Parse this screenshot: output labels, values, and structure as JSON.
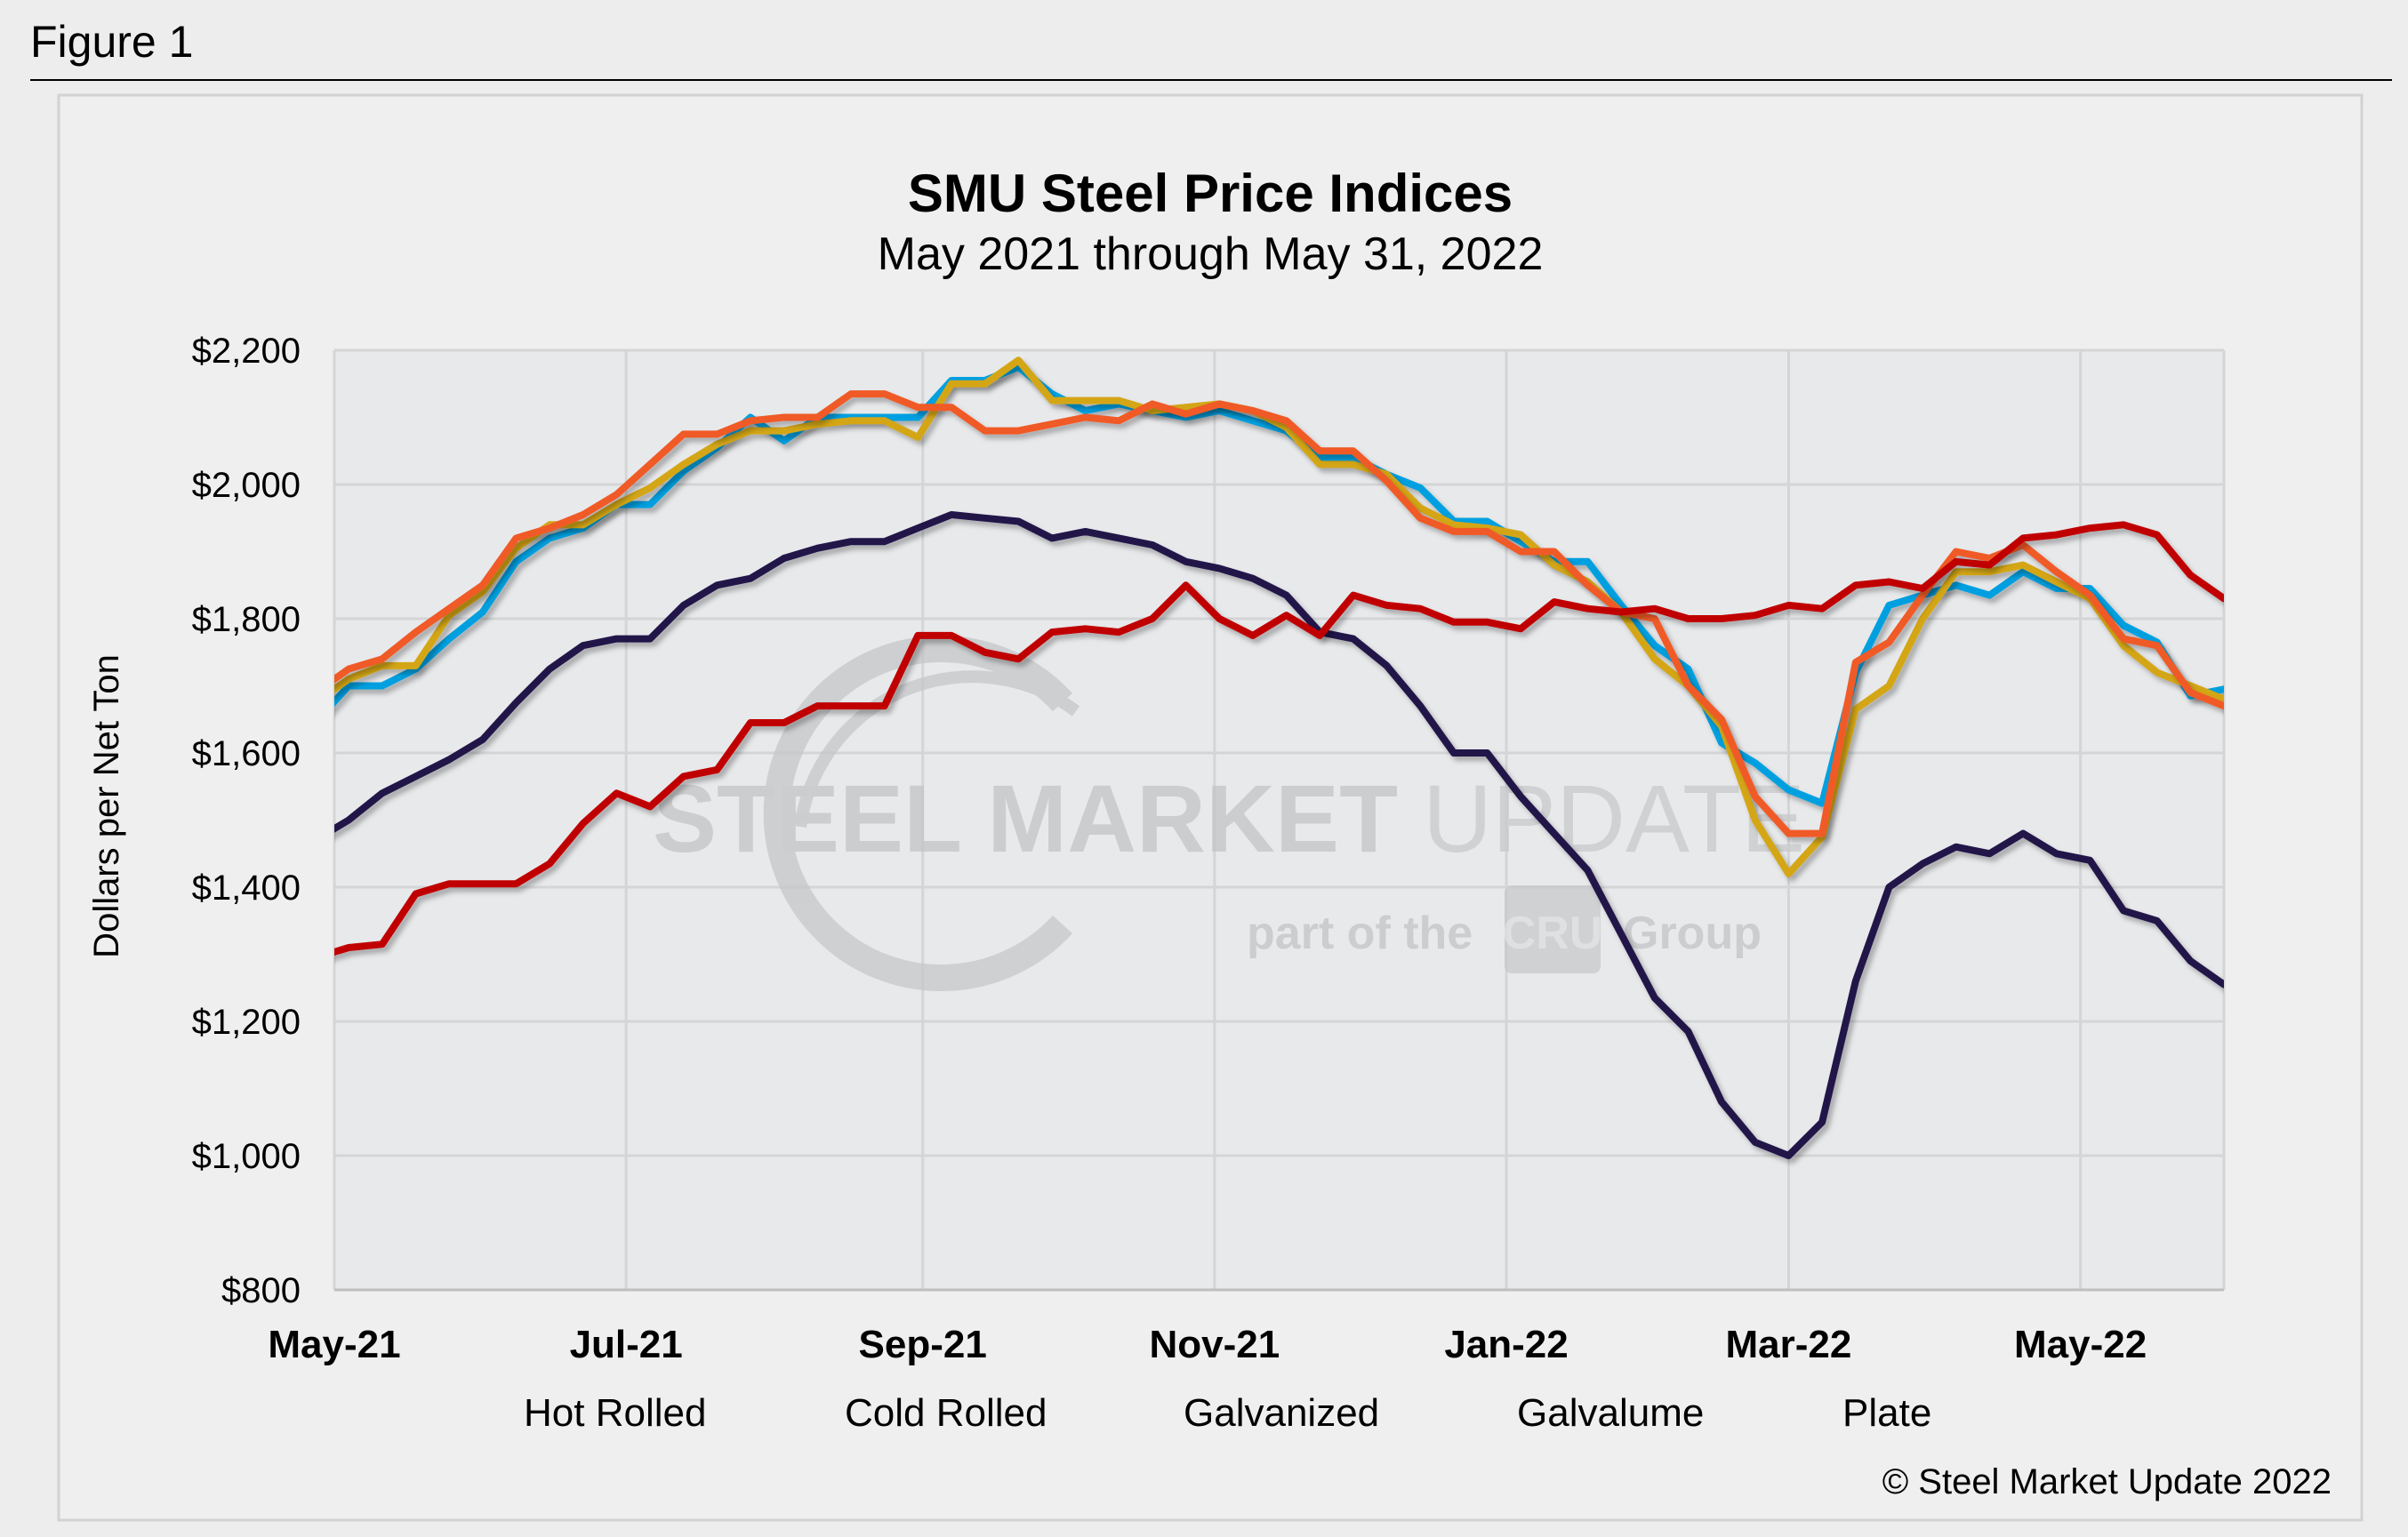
{
  "figure_label": "Figure 1",
  "watermark": {
    "brand_bold": "STEEL MARKET",
    "brand_light": "UPDATE",
    "tagline_prefix": "part of the",
    "tagline_logo": "CRU",
    "tagline_suffix": "Group"
  },
  "copyright": "© Steel Market Update 2022",
  "chart_data": {
    "type": "line",
    "title": "SMU Steel Price Indices",
    "subtitle": "May 2021 through May 31, 2022",
    "xlabel": "",
    "ylabel": "Dollars per Net Ton",
    "xlim": [
      "2021-05-01",
      "2022-05-31"
    ],
    "ylim": [
      800,
      2200
    ],
    "y_ticks": [
      800,
      1000,
      1200,
      1400,
      1600,
      1800,
      2000,
      2200
    ],
    "y_tick_labels": [
      "$800",
      "$1,000",
      "$1,200",
      "$1,400",
      "$1,600",
      "$1,800",
      "$2,000",
      "$2,200"
    ],
    "x_ticks": [
      "2021-05-01",
      "2021-07-01",
      "2021-09-01",
      "2021-11-01",
      "2022-01-01",
      "2022-03-01",
      "2022-05-01"
    ],
    "x_tick_labels": [
      "May-21",
      "Jul-21",
      "Sep-21",
      "Nov-21",
      "Jan-22",
      "Mar-22",
      "May-22"
    ],
    "grid": true,
    "legend_position": "bottom",
    "x": [
      "2021-04-27",
      "2021-05-04",
      "2021-05-11",
      "2021-05-18",
      "2021-05-25",
      "2021-06-01",
      "2021-06-08",
      "2021-06-15",
      "2021-06-22",
      "2021-06-29",
      "2021-07-06",
      "2021-07-13",
      "2021-07-20",
      "2021-07-27",
      "2021-08-03",
      "2021-08-10",
      "2021-08-17",
      "2021-08-24",
      "2021-08-31",
      "2021-09-07",
      "2021-09-14",
      "2021-09-21",
      "2021-09-28",
      "2021-10-05",
      "2021-10-12",
      "2021-10-19",
      "2021-10-26",
      "2021-11-02",
      "2021-11-09",
      "2021-11-16",
      "2021-11-23",
      "2021-11-30",
      "2021-12-07",
      "2021-12-14",
      "2021-12-21",
      "2021-12-28",
      "2022-01-04",
      "2022-01-11",
      "2022-01-18",
      "2022-01-25",
      "2022-02-01",
      "2022-02-08",
      "2022-02-15",
      "2022-02-22",
      "2022-03-01",
      "2022-03-08",
      "2022-03-15",
      "2022-03-22",
      "2022-03-29",
      "2022-04-05",
      "2022-04-12",
      "2022-04-19",
      "2022-04-26",
      "2022-05-03",
      "2022-05-10",
      "2022-05-17",
      "2022-05-24",
      "2022-05-31"
    ],
    "series": [
      {
        "name": "Hot Rolled",
        "color": "#20174a",
        "values": [
          1470,
          1500,
          1540,
          1565,
          1590,
          1620,
          1675,
          1725,
          1760,
          1770,
          1770,
          1820,
          1850,
          1860,
          1890,
          1905,
          1915,
          1915,
          1935,
          1955,
          1950,
          1945,
          1920,
          1930,
          1920,
          1910,
          1885,
          1875,
          1860,
          1835,
          1780,
          1770,
          1730,
          1670,
          1600,
          1600,
          1535,
          1480,
          1425,
          1330,
          1235,
          1185,
          1080,
          1020,
          1000,
          1050,
          1260,
          1400,
          1435,
          1460,
          1450,
          1480,
          1450,
          1440,
          1365,
          1350,
          1290,
          1255
        ]
      },
      {
        "name": "Cold Rolled",
        "color": "#00a0e0",
        "values": [
          1645,
          1700,
          1700,
          1725,
          1770,
          1810,
          1885,
          1920,
          1935,
          1970,
          1970,
          2020,
          2055,
          2100,
          2065,
          2100,
          2100,
          2100,
          2100,
          2155,
          2155,
          2175,
          2135,
          2110,
          2120,
          2110,
          2100,
          2110,
          2095,
          2080,
          2040,
          2040,
          2015,
          1995,
          1945,
          1945,
          1915,
          1885,
          1885,
          1820,
          1760,
          1725,
          1615,
          1585,
          1545,
          1525,
          1720,
          1820,
          1835,
          1850,
          1835,
          1870,
          1845,
          1845,
          1790,
          1765,
          1685,
          1695
        ]
      },
      {
        "name": "Galvanized",
        "color": "#d4a617",
        "values": [
          1675,
          1710,
          1730,
          1730,
          1805,
          1840,
          1905,
          1940,
          1940,
          1970,
          1995,
          2030,
          2060,
          2080,
          2080,
          2090,
          2095,
          2095,
          2070,
          2150,
          2150,
          2185,
          2125,
          2125,
          2125,
          2110,
          2115,
          2120,
          2110,
          2085,
          2030,
          2030,
          2015,
          1965,
          1940,
          1935,
          1925,
          1880,
          1855,
          1810,
          1740,
          1700,
          1640,
          1500,
          1420,
          1475,
          1665,
          1700,
          1800,
          1870,
          1870,
          1880,
          1855,
          1830,
          1760,
          1720,
          1700,
          1680
        ]
      },
      {
        "name": "Galvalume",
        "color": "#f05a28",
        "values": [
          1690,
          1725,
          1740,
          1780,
          1815,
          1850,
          1920,
          1935,
          1955,
          1985,
          2030,
          2075,
          2075,
          2095,
          2100,
          2100,
          2135,
          2135,
          2115,
          2115,
          2080,
          2080,
          2090,
          2100,
          2095,
          2120,
          2105,
          2120,
          2110,
          2095,
          2050,
          2050,
          2005,
          1950,
          1930,
          1930,
          1900,
          1900,
          1850,
          1810,
          1800,
          1700,
          1650,
          1535,
          1480,
          1480,
          1735,
          1765,
          1835,
          1900,
          1890,
          1910,
          1870,
          1835,
          1770,
          1760,
          1690,
          1670
        ]
      },
      {
        "name": "Plate",
        "color": "#c00000",
        "values": [
          1295,
          1310,
          1315,
          1390,
          1405,
          1405,
          1405,
          1435,
          1495,
          1540,
          1520,
          1565,
          1575,
          1645,
          1645,
          1670,
          1670,
          1670,
          1775,
          1775,
          1750,
          1740,
          1780,
          1785,
          1780,
          1800,
          1850,
          1800,
          1775,
          1805,
          1775,
          1835,
          1820,
          1815,
          1795,
          1795,
          1785,
          1825,
          1815,
          1810,
          1815,
          1800,
          1800,
          1805,
          1820,
          1815,
          1850,
          1855,
          1845,
          1885,
          1880,
          1920,
          1925,
          1935,
          1940,
          1925,
          1865,
          1830
        ]
      }
    ]
  }
}
